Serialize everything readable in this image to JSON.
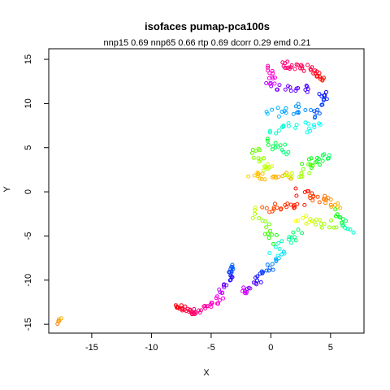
{
  "chart_data": {
    "type": "scatter",
    "title": "isofaces pumap-pca100s",
    "subtitle": "nnp15 0.69 nnp65 0.66 rtp 0.69 dcorr 0.29 emd 0.21",
    "xlabel": "X",
    "ylabel": "Y",
    "xlim": [
      -18.6,
      7.8
    ],
    "ylim": [
      -16.0,
      16.2
    ],
    "xticks": [
      -15,
      -10,
      -5,
      0,
      5
    ],
    "yticks": [
      -15,
      -10,
      -5,
      0,
      5,
      10,
      15
    ],
    "xtick_labels": [
      "-15",
      "-10",
      "-5",
      "0",
      "5"
    ],
    "ytick_labels": [
      "-15",
      "-10",
      "-5",
      "0",
      "5",
      "10",
      "15"
    ],
    "grid": false,
    "colormap": "rainbow",
    "segments": [
      {
        "from": [
          -17.9,
          -14.9
        ],
        "to": [
          -17.6,
          -14.4
        ],
        "count": 5,
        "hue_start": 30,
        "hue_end": 42,
        "jitter": 0.12
      },
      {
        "from": [
          -8.0,
          -12.9
        ],
        "to": [
          -6.5,
          -13.7
        ],
        "count": 22,
        "hue_start": 0,
        "hue_end": 335,
        "jitter": 0.3
      },
      {
        "from": [
          -6.5,
          -13.6
        ],
        "to": [
          -4.5,
          -12.6
        ],
        "count": 18,
        "hue_start": 335,
        "hue_end": 310,
        "jitter": 0.3
      },
      {
        "from": [
          -4.5,
          -12.4
        ],
        "to": [
          -3.2,
          -9.5
        ],
        "count": 18,
        "hue_start": 310,
        "hue_end": 240,
        "jitter": 0.35
      },
      {
        "from": [
          -3.6,
          -9.2
        ],
        "to": [
          -3.0,
          -8.3
        ],
        "count": 10,
        "hue_start": 230,
        "hue_end": 215,
        "jitter": 0.3
      },
      {
        "from": [
          -2.5,
          -11.6
        ],
        "to": [
          -1.0,
          -10.0
        ],
        "count": 14,
        "hue_start": 300,
        "hue_end": 250,
        "jitter": 0.35
      },
      {
        "from": [
          -1.0,
          -10.0
        ],
        "to": [
          0.8,
          -7.0
        ],
        "count": 18,
        "hue_start": 240,
        "hue_end": 190,
        "jitter": 0.45
      },
      {
        "from": [
          0.2,
          -7.0
        ],
        "to": [
          2.5,
          -4.6
        ],
        "count": 16,
        "hue_start": 180,
        "hue_end": 140,
        "jitter": 0.5
      },
      {
        "from": [
          -1.5,
          -2.2
        ],
        "to": [
          0.5,
          -5.5
        ],
        "count": 16,
        "hue_start": 70,
        "hue_end": 120,
        "jitter": 0.45
      },
      {
        "from": [
          -0.5,
          -2.0
        ],
        "to": [
          2.5,
          -1.5
        ],
        "count": 20,
        "hue_start": 20,
        "hue_end": 5,
        "jitter": 0.45
      },
      {
        "from": [
          2.3,
          0.0
        ],
        "to": [
          5.8,
          -1.5
        ],
        "count": 26,
        "hue_start": 0,
        "hue_end": 45,
        "jitter": 0.45
      },
      {
        "from": [
          2.5,
          -3.0
        ],
        "to": [
          5.5,
          -3.8
        ],
        "count": 20,
        "hue_start": 60,
        "hue_end": 90,
        "jitter": 0.5
      },
      {
        "from": [
          5.5,
          -2.3
        ],
        "to": [
          6.6,
          -4.6
        ],
        "count": 14,
        "hue_start": 110,
        "hue_end": 170,
        "jitter": 0.35
      },
      {
        "from": [
          -1.8,
          1.8
        ],
        "to": [
          1.5,
          1.8
        ],
        "count": 20,
        "hue_start": 48,
        "hue_end": 38,
        "jitter": 0.4
      },
      {
        "from": [
          -1.6,
          5.0
        ],
        "to": [
          0.0,
          2.5
        ],
        "count": 18,
        "hue_start": 100,
        "hue_end": 70,
        "jitter": 0.5
      },
      {
        "from": [
          1.5,
          1.5
        ],
        "to": [
          3.5,
          2.8
        ],
        "count": 14,
        "hue_start": 70,
        "hue_end": 95,
        "jitter": 0.5
      },
      {
        "from": [
          3.0,
          3.0
        ],
        "to": [
          4.8,
          4.2
        ],
        "count": 16,
        "hue_start": 110,
        "hue_end": 145,
        "jitter": 0.5
      },
      {
        "from": [
          0.0,
          7.0
        ],
        "to": [
          4.0,
          7.5
        ],
        "count": 20,
        "hue_start": 165,
        "hue_end": 180,
        "jitter": 0.6
      },
      {
        "from": [
          -0.5,
          5.5
        ],
        "to": [
          1.5,
          4.5
        ],
        "count": 14,
        "hue_start": 130,
        "hue_end": 150,
        "jitter": 0.55
      },
      {
        "from": [
          -0.2,
          9.0
        ],
        "to": [
          3.0,
          9.5
        ],
        "count": 18,
        "hue_start": 195,
        "hue_end": 210,
        "jitter": 0.6
      },
      {
        "from": [
          3.5,
          8.5
        ],
        "to": [
          4.6,
          11.5
        ],
        "count": 16,
        "hue_start": 215,
        "hue_end": 240,
        "jitter": 0.4
      },
      {
        "from": [
          0.0,
          12.0
        ],
        "to": [
          3.5,
          11.5
        ],
        "count": 18,
        "hue_start": 275,
        "hue_end": 255,
        "jitter": 0.5
      },
      {
        "from": [
          0.0,
          14.2
        ],
        "to": [
          0.2,
          12.3
        ],
        "count": 12,
        "hue_start": 320,
        "hue_end": 300,
        "jitter": 0.3
      },
      {
        "from": [
          0.8,
          14.5
        ],
        "to": [
          3.5,
          14.0
        ],
        "count": 22,
        "hue_start": 330,
        "hue_end": 345,
        "jitter": 0.4
      },
      {
        "from": [
          3.5,
          13.8
        ],
        "to": [
          4.5,
          12.5
        ],
        "count": 12,
        "hue_start": 350,
        "hue_end": 5,
        "jitter": 0.3
      }
    ]
  }
}
